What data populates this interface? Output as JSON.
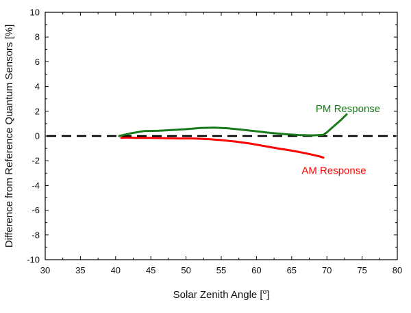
{
  "chart_data": {
    "type": "line",
    "xlabel": "Solar Zenith Angle [o]",
    "ylabel": "Difference from Reference Quantum Sensors [%]",
    "xlim": [
      30,
      80
    ],
    "ylim": [
      -10,
      10
    ],
    "x_ticks": [
      30,
      35,
      40,
      45,
      50,
      55,
      60,
      65,
      70,
      75,
      80
    ],
    "y_ticks": [
      -10,
      -8,
      -6,
      -4,
      -2,
      0,
      2,
      4,
      6,
      8,
      10
    ],
    "grid": false,
    "reference_line": {
      "y": 0,
      "style": "dashed",
      "color": "#000000"
    },
    "series": [
      {
        "name": "PM Response",
        "color": "#1a7a1a",
        "x": [
          40.5,
          42,
          44,
          46,
          48,
          50,
          52,
          54,
          56,
          58,
          60,
          62,
          64,
          66,
          68,
          69.5,
          70,
          71,
          72,
          72.8
        ],
        "y": [
          0.0,
          0.2,
          0.4,
          0.42,
          0.48,
          0.55,
          0.65,
          0.68,
          0.62,
          0.5,
          0.38,
          0.25,
          0.15,
          0.08,
          0.05,
          0.1,
          0.3,
          0.8,
          1.3,
          1.75
        ]
      },
      {
        "name": "AM Response",
        "color": "#ff0000",
        "x": [
          40.8,
          41.5,
          43,
          45,
          47,
          49,
          51,
          53,
          55,
          57,
          59,
          61,
          63,
          65,
          67,
          69,
          69.5
        ],
        "y": [
          -0.15,
          -0.12,
          -0.15,
          -0.15,
          -0.18,
          -0.2,
          -0.2,
          -0.25,
          -0.33,
          -0.45,
          -0.6,
          -0.8,
          -1.0,
          -1.18,
          -1.4,
          -1.65,
          -1.75
        ]
      }
    ],
    "annotations": [
      {
        "text": "PM Response",
        "x": 73,
        "y": 2.2,
        "color": "#1a7a1a"
      },
      {
        "text": "AM Response",
        "x": 71,
        "y": -2.8,
        "color": "#ff0000"
      }
    ]
  }
}
